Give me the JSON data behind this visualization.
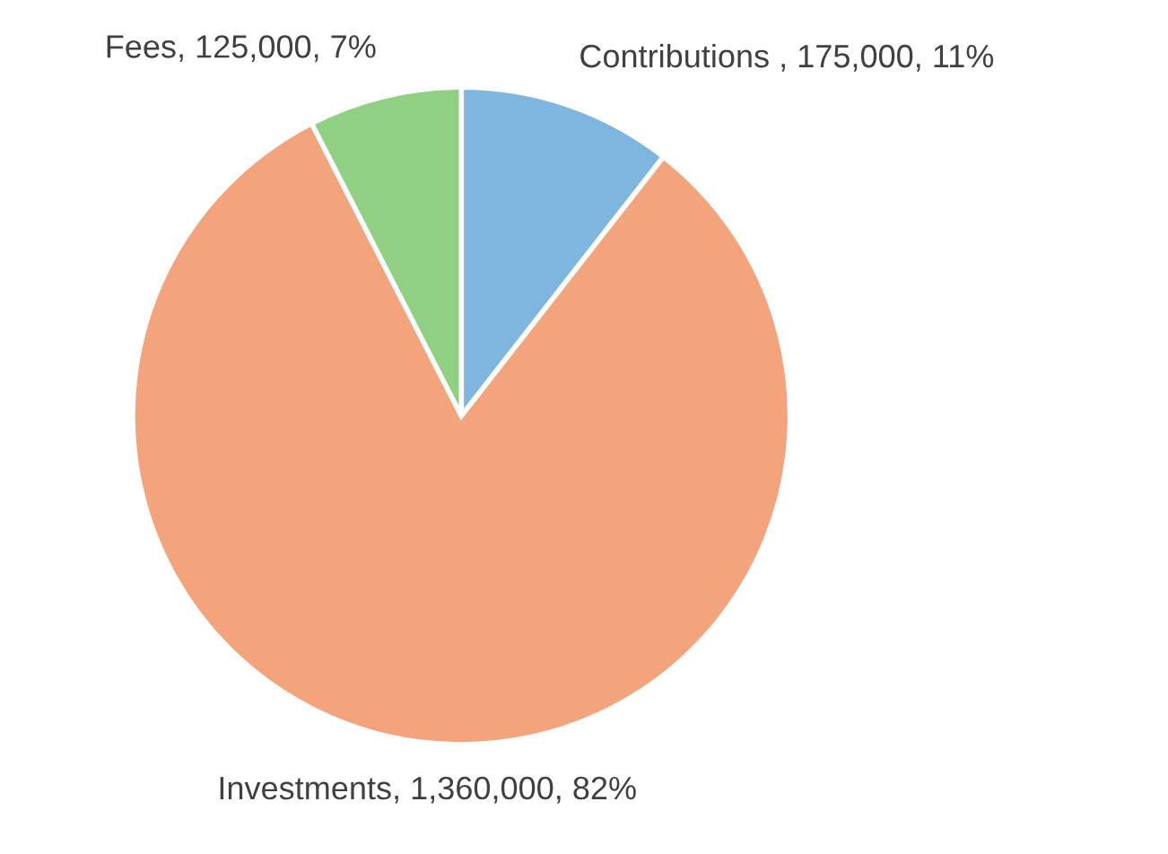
{
  "chart_data": {
    "type": "pie",
    "categories": [
      "Contributions ",
      "Investments",
      "Fees"
    ],
    "values": [
      175000,
      1360000,
      125000
    ],
    "value_labels": [
      "175,000, 11%",
      "1,360,000, 82%",
      "125,000, 7%"
    ],
    "colors": [
      "#7fb6e0",
      "#f4a47c",
      "#8fd083"
    ],
    "legend": false
  }
}
